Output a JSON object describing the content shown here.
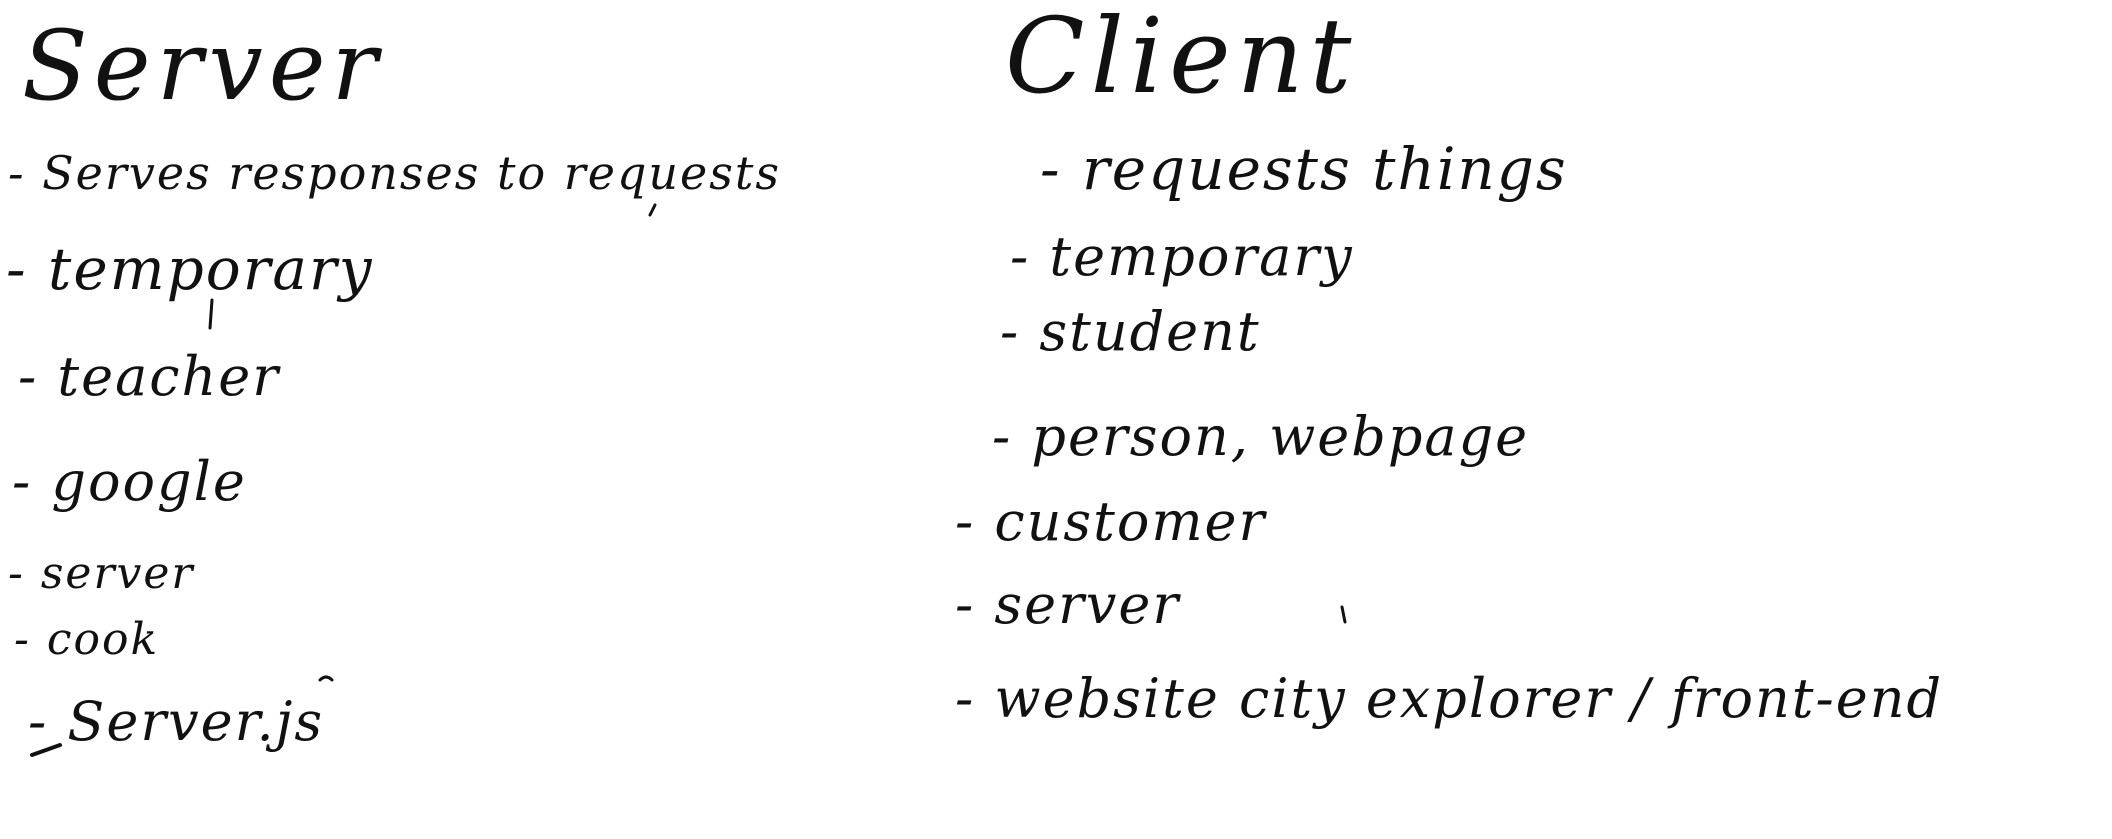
{
  "whiteboard": {
    "server": {
      "heading": "Server",
      "items": [
        "- Serves responses to requests",
        "- temporary",
        "- teacher",
        "- google",
        "- server",
        "- cook",
        "- Server.js"
      ]
    },
    "client": {
      "heading": "Client",
      "items": [
        "- requests things",
        "- temporary",
        "- student",
        "- person, webpage",
        "- customer",
        "- server",
        "- website   city explorer / front-end"
      ]
    },
    "ink_color": "#111111",
    "background_color": "#ffffff"
  }
}
